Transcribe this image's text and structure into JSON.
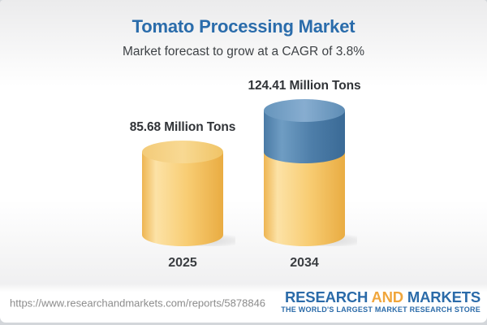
{
  "header": {
    "title": "Tomato Processing Market",
    "subtitle": "Market forecast to grow at a CAGR of 3.8%"
  },
  "chart_data": {
    "type": "bar",
    "bar_style": "3d-cylinder",
    "categories": [
      "2025",
      "2034"
    ],
    "values": [
      85.68,
      124.41
    ],
    "value_labels": [
      "85.68 Million Tons",
      "124.41 Million Tons"
    ],
    "unit": "Million Tons",
    "cagr_text": "3.8%",
    "legend": "none",
    "axes": "none",
    "colors": {
      "bar_yellow": "#f8cd74",
      "growth_blue": "#4d7da8",
      "label_text": "#303337",
      "title_blue": "#2a6cab"
    },
    "growth_segment": {
      "bar": "2034",
      "represents": "increase above 2025 level"
    }
  },
  "footer": {
    "url": "https://www.researchandmarkets.com/reports/5878846",
    "logo": {
      "word1": "RESEARCH",
      "word2": "AND",
      "word3": "MARKETS",
      "tagline": "THE WORLD'S LARGEST MARKET RESEARCH STORE",
      "blue": "#2b6ba9",
      "orange": "#f0a63c"
    }
  }
}
